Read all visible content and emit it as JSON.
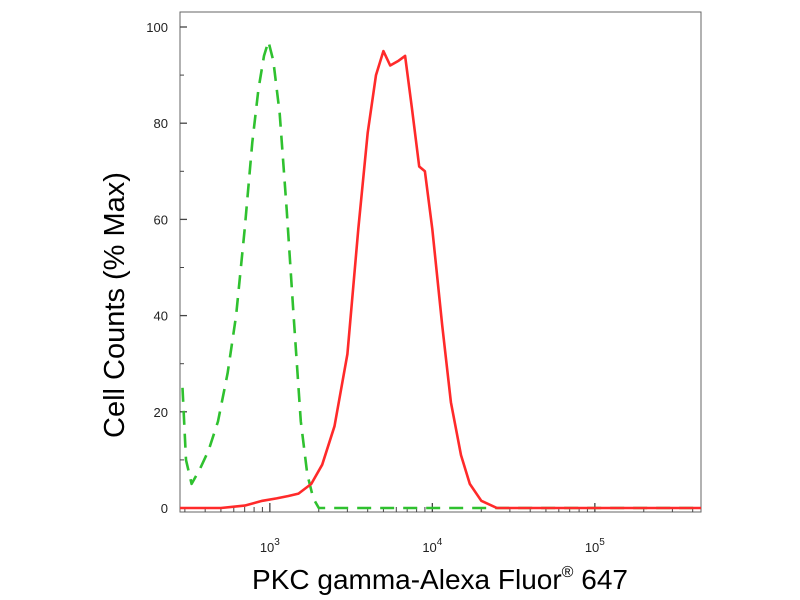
{
  "chart_data": {
    "type": "line",
    "title": "",
    "xlabel_main": "PKC gamma-Alexa Fluor",
    "xlabel_sup": "®",
    "xlabel_tail": " 647",
    "ylabel": "Cell Counts (% Max)",
    "x_scale": "log",
    "xlim": [
      280,
      450000
    ],
    "ylim": [
      0,
      102
    ],
    "y_ticks": [
      0,
      20,
      40,
      60,
      80,
      100
    ],
    "y_tick_labels": [
      "0",
      "20",
      "40",
      "60",
      "80",
      "100"
    ],
    "x_ticks": [
      1000,
      10000,
      100000
    ],
    "x_tick_label_base": "10",
    "x_tick_label_exps": [
      "3",
      "4",
      "5"
    ],
    "grid": false,
    "legend": "none",
    "series": [
      {
        "color": "#2fc12f",
        "style": "dashed",
        "points": [
          [
            290,
            25
          ],
          [
            305,
            10
          ],
          [
            330,
            5
          ],
          [
            370,
            8
          ],
          [
            420,
            12
          ],
          [
            480,
            18
          ],
          [
            550,
            28
          ],
          [
            620,
            40
          ],
          [
            700,
            58
          ],
          [
            780,
            76
          ],
          [
            850,
            87
          ],
          [
            920,
            94
          ],
          [
            980,
            97
          ],
          [
            1050,
            93
          ],
          [
            1150,
            82
          ],
          [
            1270,
            62
          ],
          [
            1400,
            40
          ],
          [
            1550,
            18
          ],
          [
            1700,
            7
          ],
          [
            1850,
            2
          ],
          [
            2000,
            0
          ],
          [
            2300,
            0
          ],
          [
            4000,
            0
          ],
          [
            10000,
            0
          ],
          [
            20000,
            0
          ],
          [
            100000,
            0
          ],
          [
            450000,
            0
          ]
        ]
      },
      {
        "color": "#ff2a2a",
        "style": "solid",
        "points": [
          [
            280,
            0
          ],
          [
            500,
            0
          ],
          [
            700,
            0.5
          ],
          [
            900,
            1.5
          ],
          [
            1100,
            2
          ],
          [
            1300,
            2.5
          ],
          [
            1500,
            3
          ],
          [
            1800,
            5
          ],
          [
            2100,
            9
          ],
          [
            2500,
            17
          ],
          [
            3000,
            32
          ],
          [
            3500,
            58
          ],
          [
            4000,
            78
          ],
          [
            4500,
            90
          ],
          [
            5000,
            95
          ],
          [
            5500,
            92
          ],
          [
            6200,
            93
          ],
          [
            6800,
            94
          ],
          [
            7500,
            83
          ],
          [
            8300,
            71
          ],
          [
            9000,
            70
          ],
          [
            10000,
            58
          ],
          [
            11500,
            38
          ],
          [
            13000,
            22
          ],
          [
            15000,
            11
          ],
          [
            17000,
            5
          ],
          [
            20000,
            1.5
          ],
          [
            25000,
            0
          ],
          [
            40000,
            0
          ],
          [
            100000,
            0
          ],
          [
            450000,
            0
          ]
        ]
      }
    ]
  }
}
